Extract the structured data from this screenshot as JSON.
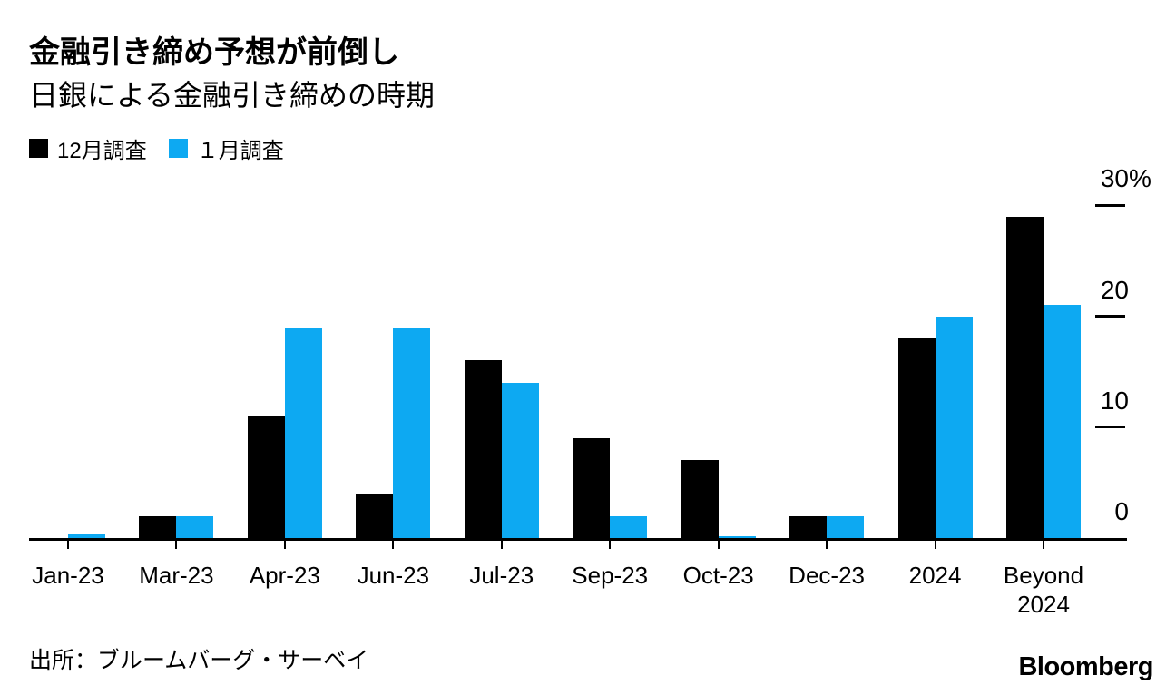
{
  "header": {
    "title": "金融引き締め予想が前倒し",
    "subtitle": "日銀による金融引き締めの時期"
  },
  "footer": {
    "source": "出所：ブルームバーグ・サーベイ",
    "logo": "Bloomberg"
  },
  "chart_data": {
    "type": "bar",
    "title": "金融引き締め予想が前倒し",
    "subtitle": "日銀による金融引き締めの時期",
    "categories": [
      "Jan-23",
      "Mar-23",
      "Apr-23",
      "Jun-23",
      "Jul-23",
      "Sep-23",
      "Oct-23",
      "Dec-23",
      "2024",
      "Beyond 2024"
    ],
    "series": [
      {
        "name": "12月調査",
        "color": "#000000",
        "values": [
          0,
          2,
          11,
          4,
          16,
          9,
          7,
          2,
          18,
          29
        ]
      },
      {
        "name": "１月調査",
        "color": "#0da9f2",
        "values": [
          0.3,
          2,
          19,
          19,
          14,
          2,
          0.2,
          2,
          20,
          21
        ]
      }
    ],
    "xlabel": "",
    "ylabel": "%",
    "ylim": [
      0,
      30
    ],
    "yticks": [
      {
        "value": 0,
        "label": "0",
        "suffix": ""
      },
      {
        "value": 10,
        "label": "10",
        "suffix": ""
      },
      {
        "value": 20,
        "label": "20",
        "suffix": ""
      },
      {
        "value": 30,
        "label": "30",
        "suffix": "%"
      }
    ],
    "legend_position": "top-left",
    "axis_side": "right",
    "grid": false
  }
}
